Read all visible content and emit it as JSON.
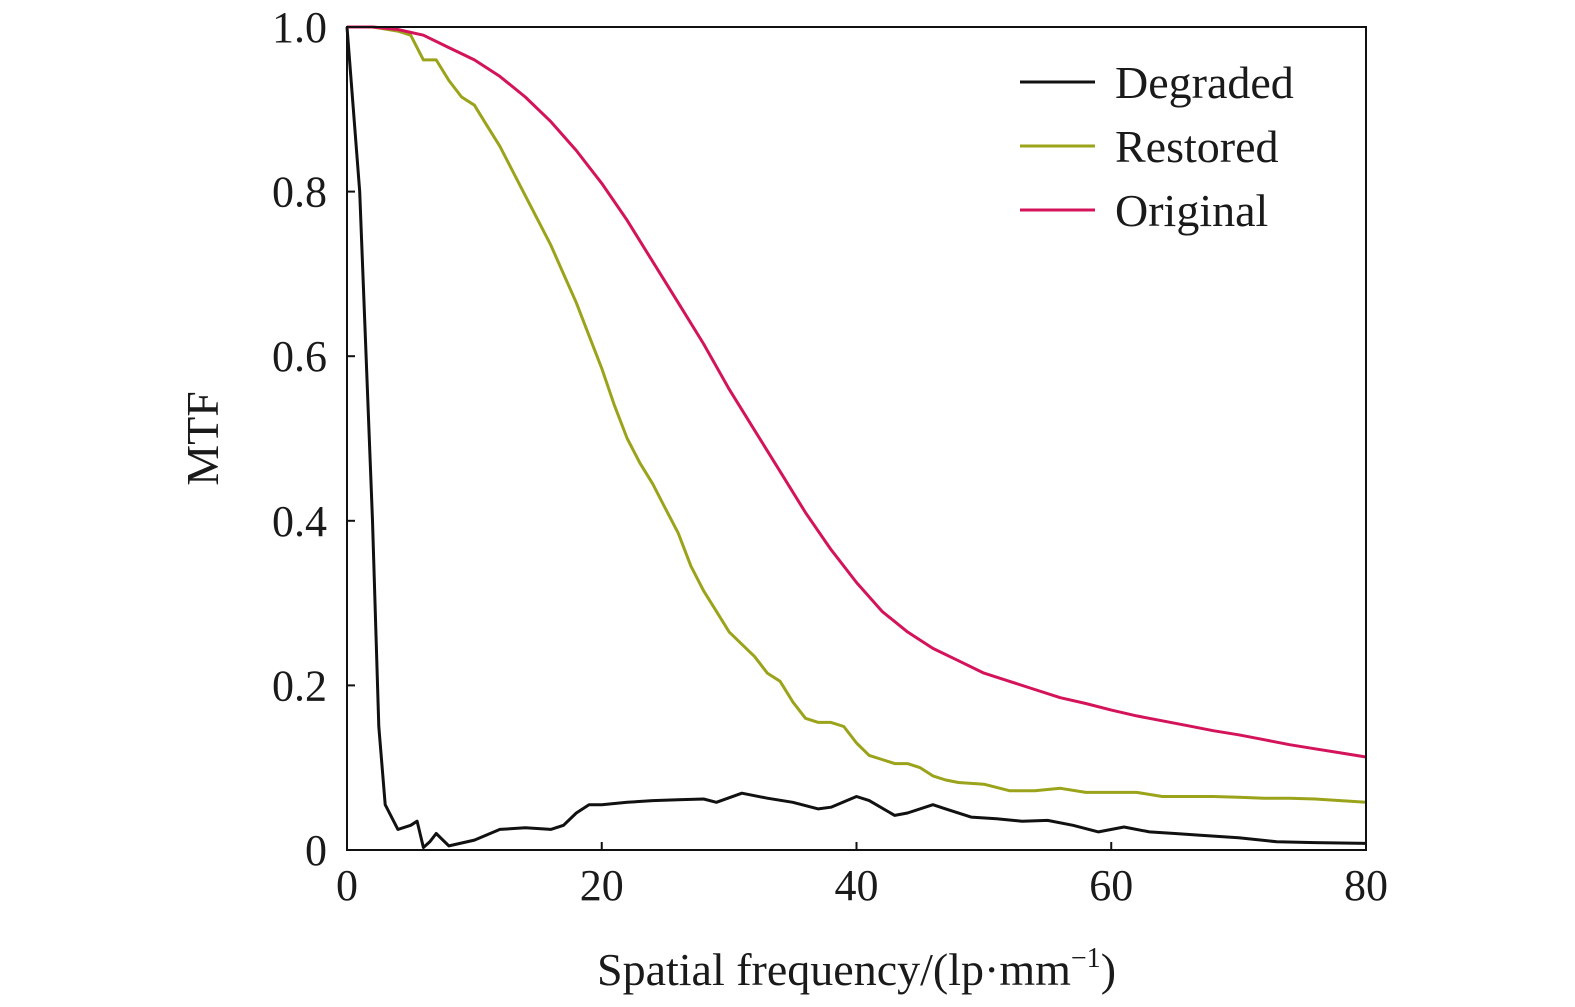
{
  "chart_data": {
    "type": "line",
    "xlabel": "Spatial frequency/(lp·mm",
    "xlabel_sup": "−1",
    "xlabel_tail": ")",
    "ylabel": "MTF",
    "xlim": [
      0,
      80
    ],
    "ylim": [
      0,
      1.0
    ],
    "xticks": [
      0,
      20,
      40,
      60,
      80
    ],
    "xtick_labels": [
      "0",
      "20",
      "40",
      "60",
      "80"
    ],
    "yticks": [
      0,
      0.2,
      0.4,
      0.6,
      0.8,
      1.0
    ],
    "ytick_labels": [
      "0",
      "0.2",
      "0.4",
      "0.6",
      "0.8",
      "1.0"
    ],
    "grid": false,
    "legend_position": "top-right",
    "series": [
      {
        "name": "Degraded",
        "color": "#111111",
        "x": [
          0,
          1,
          2,
          2.5,
          3,
          4,
          5,
          5.5,
          6,
          6.5,
          7,
          8,
          10,
          12,
          14,
          16,
          17,
          18,
          19,
          20,
          22,
          24,
          26,
          28,
          29,
          31,
          33,
          35,
          37,
          38,
          40,
          41,
          43,
          44,
          46,
          47,
          49,
          51,
          53,
          55,
          57,
          59,
          61,
          63,
          65,
          67,
          70,
          73,
          76,
          80
        ],
        "y": [
          1.0,
          0.8,
          0.4,
          0.15,
          0.055,
          0.025,
          0.03,
          0.035,
          0.003,
          0.01,
          0.02,
          0.005,
          0.012,
          0.025,
          0.027,
          0.025,
          0.03,
          0.045,
          0.055,
          0.055,
          0.058,
          0.06,
          0.061,
          0.062,
          0.058,
          0.069,
          0.063,
          0.058,
          0.05,
          0.052,
          0.065,
          0.06,
          0.042,
          0.045,
          0.055,
          0.05,
          0.04,
          0.038,
          0.035,
          0.036,
          0.03,
          0.022,
          0.028,
          0.022,
          0.02,
          0.018,
          0.015,
          0.01,
          0.009,
          0.008
        ]
      },
      {
        "name": "Restored",
        "color": "#9aa31a",
        "x": [
          0,
          2,
          4,
          5,
          6,
          7,
          8,
          9,
          10,
          11,
          12,
          13,
          14,
          15,
          16,
          17,
          18,
          19,
          20,
          21,
          22,
          23,
          24,
          25,
          26,
          27,
          28,
          29,
          30,
          31,
          32,
          33,
          34,
          35,
          36,
          37,
          38,
          39,
          40,
          41,
          42,
          43,
          44,
          45,
          46,
          47,
          48,
          50,
          52,
          54,
          56,
          58,
          60,
          62,
          64,
          66,
          68,
          70,
          72,
          74,
          76,
          78,
          80
        ],
        "y": [
          1.0,
          1.0,
          0.995,
          0.99,
          0.96,
          0.96,
          0.935,
          0.915,
          0.905,
          0.88,
          0.855,
          0.825,
          0.795,
          0.765,
          0.735,
          0.7,
          0.665,
          0.625,
          0.585,
          0.54,
          0.5,
          0.47,
          0.445,
          0.415,
          0.385,
          0.345,
          0.315,
          0.29,
          0.265,
          0.25,
          0.235,
          0.215,
          0.205,
          0.18,
          0.16,
          0.155,
          0.155,
          0.15,
          0.13,
          0.115,
          0.11,
          0.105,
          0.105,
          0.1,
          0.09,
          0.085,
          0.082,
          0.08,
          0.072,
          0.072,
          0.075,
          0.07,
          0.07,
          0.07,
          0.065,
          0.065,
          0.065,
          0.064,
          0.063,
          0.063,
          0.062,
          0.06,
          0.058
        ]
      },
      {
        "name": "Original",
        "color": "#d4145a",
        "x": [
          0,
          2,
          4,
          6,
          8,
          10,
          12,
          14,
          16,
          18,
          20,
          22,
          24,
          26,
          28,
          30,
          32,
          34,
          36,
          38,
          40,
          42,
          44,
          46,
          48,
          50,
          52,
          54,
          56,
          58,
          60,
          62,
          64,
          66,
          68,
          70,
          72,
          74,
          76,
          78,
          80
        ],
        "y": [
          1.0,
          1.0,
          0.997,
          0.99,
          0.975,
          0.96,
          0.94,
          0.915,
          0.885,
          0.85,
          0.81,
          0.765,
          0.715,
          0.665,
          0.615,
          0.56,
          0.51,
          0.46,
          0.41,
          0.365,
          0.325,
          0.29,
          0.265,
          0.245,
          0.23,
          0.215,
          0.205,
          0.195,
          0.185,
          0.178,
          0.17,
          0.163,
          0.157,
          0.151,
          0.145,
          0.14,
          0.134,
          0.128,
          0.123,
          0.118,
          0.113
        ]
      }
    ]
  }
}
